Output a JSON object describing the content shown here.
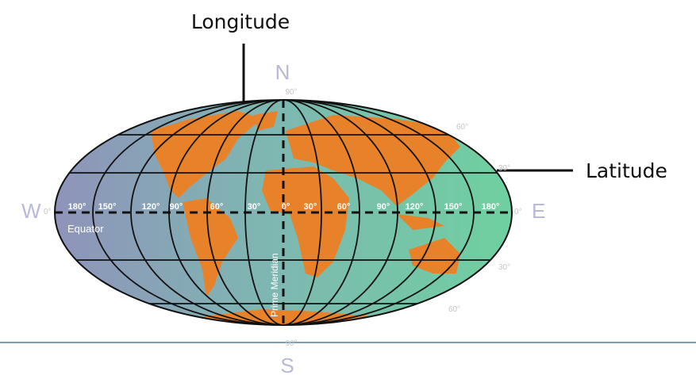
{
  "callouts": {
    "longitude": "Longitude",
    "latitude": "Latitude"
  },
  "compass": {
    "north": "N",
    "south": "S",
    "west": "W",
    "east": "E"
  },
  "latitude_labels": {
    "top_90": "90°",
    "north_60": "60°",
    "north_30": "30°",
    "west_0": "0°",
    "east_0": "0°",
    "south_30": "30°",
    "south_60": "60°",
    "bottom_90": "90°"
  },
  "longitude_labels": [
    "180°",
    "150°",
    "120°",
    "90°",
    "60°",
    "30°",
    "0°",
    "30°",
    "60°",
    "90°",
    "120°",
    "150°",
    "180°"
  ],
  "equator": "Equator",
  "prime_meridian": "Prime Meridian"
}
